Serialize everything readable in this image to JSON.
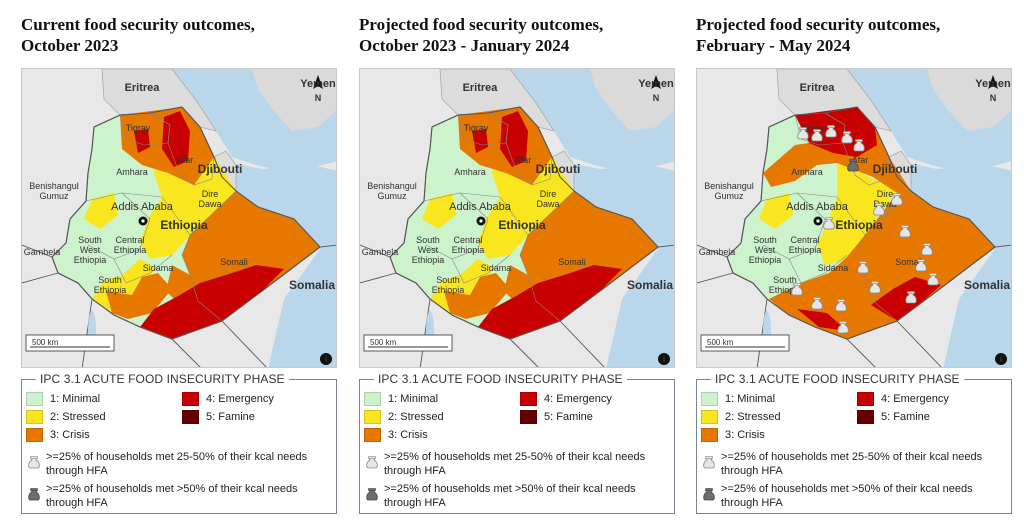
{
  "colors": {
    "minimal": "#cdf3cd",
    "stressed": "#fae61e",
    "crisis": "#e67800",
    "emergency": "#c80000",
    "famine": "#640000",
    "water": "#b9d6ea",
    "land": "#dcdcdc"
  },
  "map_labels": {
    "eritrea": "Eritrea",
    "yemen": "Yemen",
    "north": "N",
    "tigray": "Tigray",
    "afar": "Afar",
    "djibouti": "Djibouti",
    "amhara": "Amhara",
    "benishangul": "Benishangul\nGumuz",
    "dire_dawa": "Dire\nDawa",
    "addis": "Addis Ababa",
    "ethiopia": "Ethiopia",
    "gambela": "Gambela",
    "south_west": "South\nWest\nEthiopia",
    "central": "Central\nEthiopia",
    "sidama": "Sidama",
    "south": "South\nEthiopia",
    "somali": "Somali",
    "somalia": "Somalia",
    "scale": "500 km",
    "info": "i"
  },
  "legend": {
    "title": "IPC 3.1 ACUTE FOOD INSECURITY PHASE",
    "phases": [
      {
        "label": "1: Minimal"
      },
      {
        "label": "2: Stressed"
      },
      {
        "label": "3: Crisis"
      },
      {
        "label": "4: Emergency"
      },
      {
        "label": "5: Famine"
      }
    ],
    "hfa_25_50": ">=25% of households met 25-50% of their kcal needs through HFA",
    "hfa_50": ">=25% of households met >50% of their kcal needs through HFA"
  },
  "panels": [
    {
      "title": "Current food security outcomes,\nOctober 2023",
      "scenario": "current"
    },
    {
      "title": "Projected food security outcomes,\nOctober 2023 - January 2024",
      "scenario": "projected_near"
    },
    {
      "title": "Projected food security outcomes,\nFebruary - May 2024",
      "scenario": "projected_far"
    }
  ]
}
